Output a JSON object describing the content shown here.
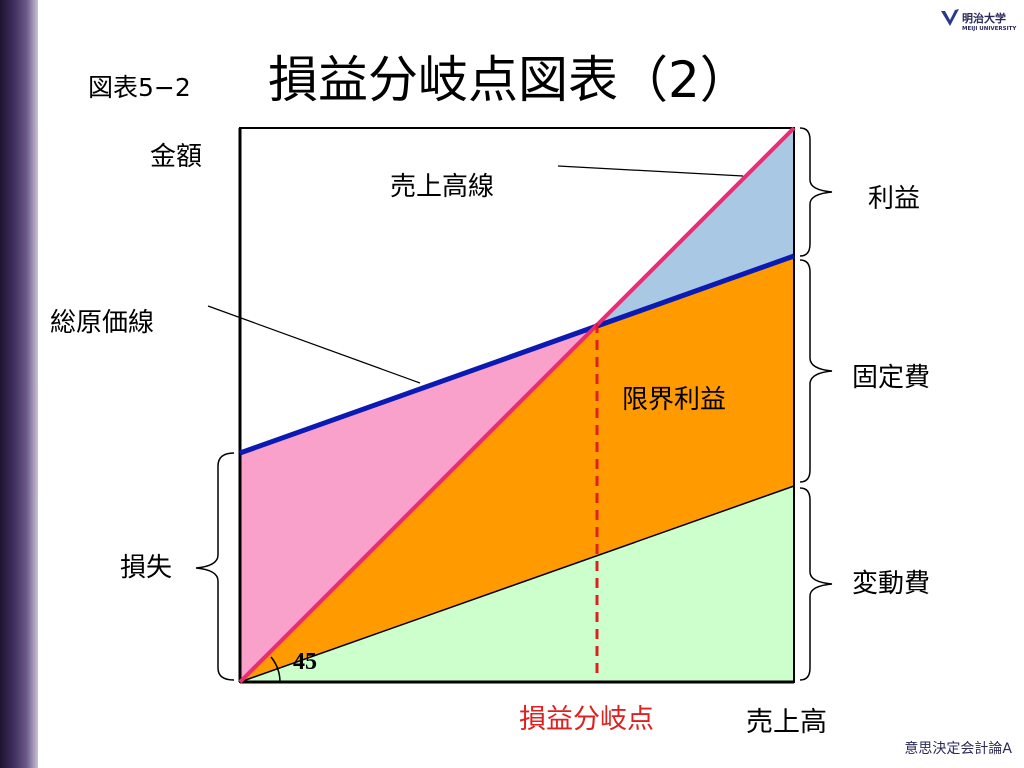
{
  "slide": {
    "number": "図表5−2",
    "title": "損益分岐点図表（2）",
    "footer": "意思決定会計論A"
  },
  "logo": {
    "name": "明治大学",
    "sub": "MEIJI UNIVERSITY"
  },
  "diagram": {
    "y_axis_label": "金額",
    "x_axis_label": "売上高",
    "sales_line_label": "売上高線",
    "total_cost_line_label": "総原価線",
    "marginal_profit_label": "限界利益",
    "break_even_label": "損益分岐点",
    "angle_label": "45",
    "brace_labels": {
      "profit": "利益",
      "fixed_cost": "固定費",
      "variable_cost": "変動費",
      "loss": "損失"
    }
  },
  "colors": {
    "sales_line": "#ee2a72",
    "total_cost_line": "#0a1ab3",
    "profit_area": "#a8c8e4",
    "loss_area": "#f9a1cb",
    "marginal_profit_area": "#ff9a00",
    "variable_cost_area": "#ccffcc",
    "break_even_marker": "#e0201f"
  }
}
